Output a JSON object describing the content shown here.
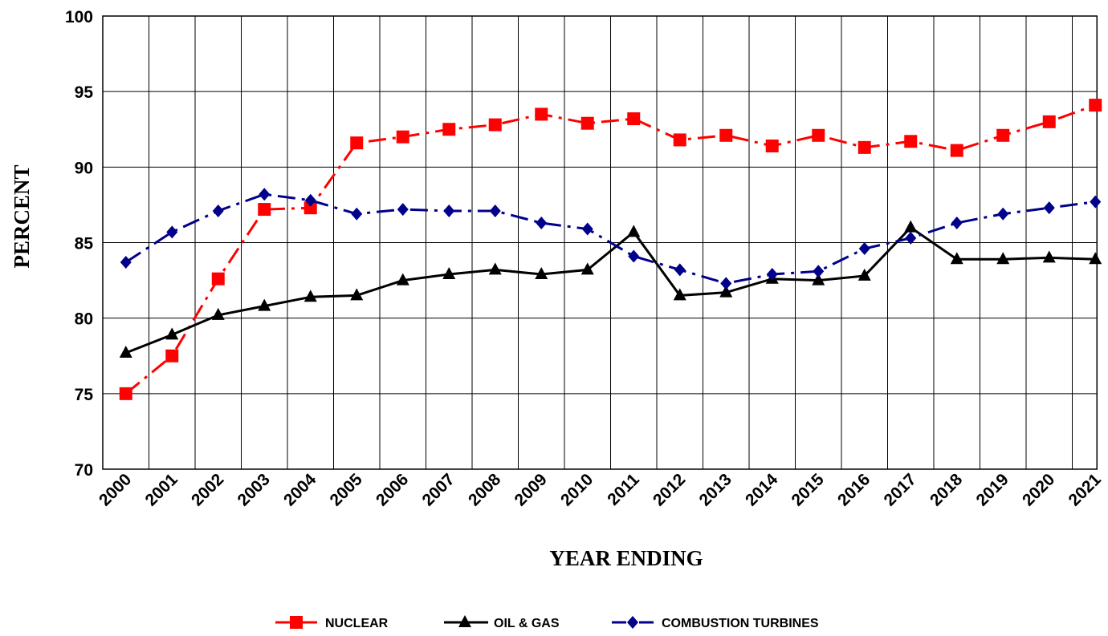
{
  "chart_data": {
    "type": "line",
    "y_label": "PERCENT",
    "x_label": "YEAR ENDING",
    "categories": [
      "2000",
      "2001",
      "2002",
      "2003",
      "2004",
      "2005",
      "2006",
      "2007",
      "2008",
      "2009",
      "2010",
      "2011",
      "2012",
      "2013",
      "2014",
      "2015",
      "2016",
      "2017",
      "2018",
      "2019",
      "2020",
      "2021"
    ],
    "series": [
      {
        "name": "NUCLEAR",
        "color": "#ff0000",
        "marker": "square",
        "dash": "dash-dot",
        "values": [
          75.0,
          77.5,
          82.6,
          87.2,
          87.3,
          91.6,
          92.0,
          92.5,
          92.8,
          93.5,
          92.9,
          93.2,
          91.8,
          92.1,
          91.4,
          92.1,
          91.3,
          91.7,
          91.1,
          92.1,
          93.0,
          94.1
        ]
      },
      {
        "name": "OIL & GAS",
        "color": "#000000",
        "marker": "triangle",
        "dash": "solid",
        "values": [
          77.7,
          78.9,
          80.2,
          80.8,
          81.4,
          81.5,
          82.5,
          82.9,
          83.2,
          82.9,
          83.2,
          85.7,
          81.5,
          81.7,
          82.6,
          82.5,
          82.8,
          86.0,
          83.9,
          83.9,
          84.0,
          83.9
        ]
      },
      {
        "name": "COMBUSTION TURBINES",
        "color": "#00008b",
        "marker": "diamond",
        "dash": "dash-dot",
        "values": [
          83.7,
          85.7,
          87.1,
          88.2,
          87.8,
          86.9,
          87.2,
          87.1,
          87.1,
          86.3,
          85.9,
          84.1,
          83.2,
          82.3,
          82.9,
          83.1,
          84.6,
          85.3,
          86.3,
          86.9,
          87.3,
          87.7
        ]
      }
    ],
    "ylim": [
      70,
      100
    ],
    "yticks": [
      70,
      75,
      80,
      85,
      90,
      95,
      100
    ],
    "grid": true,
    "legend": "bottom"
  }
}
